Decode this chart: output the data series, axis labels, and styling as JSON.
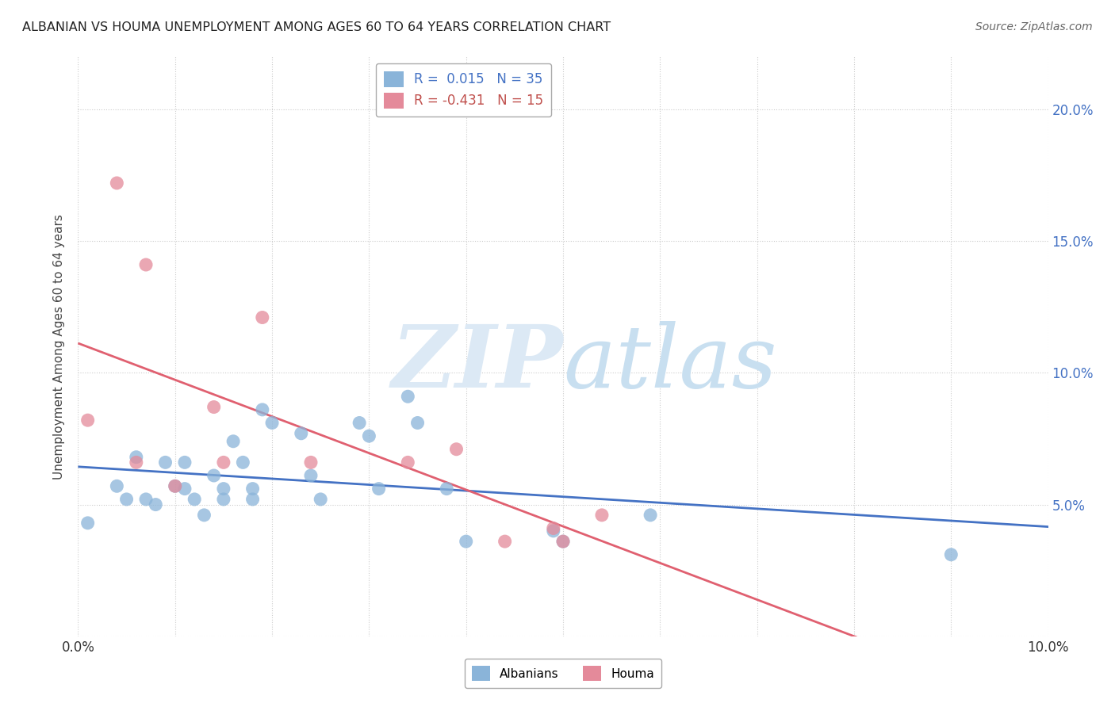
{
  "title": "ALBANIAN VS HOUMA UNEMPLOYMENT AMONG AGES 60 TO 64 YEARS CORRELATION CHART",
  "source": "Source: ZipAtlas.com",
  "ylabel": "Unemployment Among Ages 60 to 64 years",
  "xlim": [
    0.0,
    0.1
  ],
  "ylim": [
    0.0,
    0.22
  ],
  "albanian_R": 0.015,
  "albanian_N": 35,
  "houma_R": -0.431,
  "houma_N": 15,
  "albanian_color": "#8ab4d9",
  "houma_color": "#e48a9a",
  "trendline_albanian_color": "#4472c4",
  "trendline_houma_color": "#e06070",
  "albanian_scatter": [
    [
      0.001,
      0.043
    ],
    [
      0.004,
      0.057
    ],
    [
      0.005,
      0.052
    ],
    [
      0.006,
      0.068
    ],
    [
      0.007,
      0.052
    ],
    [
      0.008,
      0.05
    ],
    [
      0.009,
      0.066
    ],
    [
      0.01,
      0.057
    ],
    [
      0.011,
      0.066
    ],
    [
      0.011,
      0.056
    ],
    [
      0.012,
      0.052
    ],
    [
      0.013,
      0.046
    ],
    [
      0.014,
      0.061
    ],
    [
      0.015,
      0.056
    ],
    [
      0.015,
      0.052
    ],
    [
      0.016,
      0.074
    ],
    [
      0.017,
      0.066
    ],
    [
      0.018,
      0.056
    ],
    [
      0.018,
      0.052
    ],
    [
      0.019,
      0.086
    ],
    [
      0.02,
      0.081
    ],
    [
      0.023,
      0.077
    ],
    [
      0.024,
      0.061
    ],
    [
      0.025,
      0.052
    ],
    [
      0.029,
      0.081
    ],
    [
      0.03,
      0.076
    ],
    [
      0.031,
      0.056
    ],
    [
      0.034,
      0.091
    ],
    [
      0.035,
      0.081
    ],
    [
      0.038,
      0.056
    ],
    [
      0.04,
      0.036
    ],
    [
      0.049,
      0.04
    ],
    [
      0.05,
      0.036
    ],
    [
      0.059,
      0.046
    ],
    [
      0.09,
      0.031
    ]
  ],
  "houma_scatter": [
    [
      0.001,
      0.082
    ],
    [
      0.004,
      0.172
    ],
    [
      0.006,
      0.066
    ],
    [
      0.007,
      0.141
    ],
    [
      0.01,
      0.057
    ],
    [
      0.014,
      0.087
    ],
    [
      0.015,
      0.066
    ],
    [
      0.019,
      0.121
    ],
    [
      0.024,
      0.066
    ],
    [
      0.034,
      0.066
    ],
    [
      0.039,
      0.071
    ],
    [
      0.044,
      0.036
    ],
    [
      0.049,
      0.041
    ],
    [
      0.05,
      0.036
    ],
    [
      0.054,
      0.046
    ]
  ],
  "background_color": "#ffffff",
  "grid_color": "#cccccc",
  "watermark_color": "#dce9f5"
}
